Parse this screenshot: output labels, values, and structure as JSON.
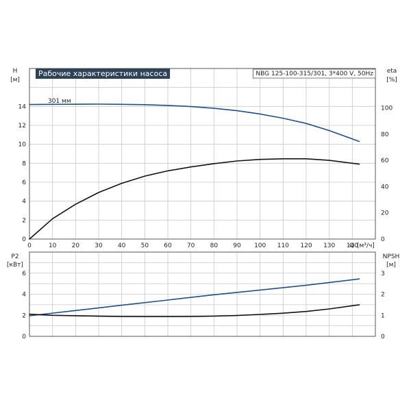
{
  "chart_data": [
    {
      "type": "line",
      "title": "Рабочие характеристики насоса",
      "model": "NBG 125-100-315/301, 3*400 V, 50Hz",
      "xlabel": "Q [м³/ч]",
      "x_label_main": "Q",
      "x_label_unit": "[м³/ч]",
      "xlim": [
        0,
        150
      ],
      "x_ticks": [
        0,
        10,
        20,
        30,
        40,
        50,
        60,
        70,
        80,
        90,
        100,
        110,
        120,
        130,
        140
      ],
      "y_left": {
        "label": "H",
        "unit": "[м]",
        "lim": [
          0,
          18
        ],
        "ticks": [
          0,
          2,
          4,
          6,
          8,
          10,
          12,
          14
        ]
      },
      "y_right": {
        "label": "eta",
        "unit": "[%]",
        "lim": [
          0,
          130
        ],
        "ticks": [
          0,
          20,
          40,
          60,
          80,
          100
        ]
      },
      "grid": true,
      "series": [
        {
          "name": "301 мм",
          "axis": "left",
          "color": "#1c4f8c",
          "x": [
            0,
            10,
            20,
            30,
            40,
            50,
            60,
            70,
            80,
            90,
            100,
            110,
            120,
            130,
            143
          ],
          "y": [
            14.2,
            14.22,
            14.23,
            14.24,
            14.22,
            14.18,
            14.1,
            13.98,
            13.8,
            13.55,
            13.2,
            12.75,
            12.2,
            11.45,
            10.3
          ]
        },
        {
          "name": "",
          "axis": "right",
          "color": "#111111",
          "x": [
            0,
            10,
            20,
            30,
            40,
            50,
            60,
            70,
            80,
            90,
            100,
            110,
            120,
            130,
            143
          ],
          "y": [
            0,
            15.5,
            26.5,
            35.5,
            42.5,
            48,
            52,
            55,
            57.5,
            59.5,
            60.7,
            61.2,
            61.2,
            60,
            57.1
          ]
        }
      ]
    },
    {
      "type": "line",
      "xlim": [
        0,
        150
      ],
      "y_left": {
        "label": "P2",
        "unit": "[кВт]",
        "lim": [
          0,
          8
        ],
        "ticks": [
          0,
          2,
          4,
          6
        ]
      },
      "y_right": {
        "label": "NPSH",
        "unit": "[м]",
        "lim": [
          0,
          4
        ],
        "ticks": [
          0,
          1,
          2,
          3
        ]
      },
      "grid": true,
      "series": [
        {
          "name": "",
          "axis": "left",
          "color": "#1c4f8c",
          "x": [
            0,
            20,
            40,
            60,
            80,
            100,
            120,
            143
          ],
          "y": [
            1.95,
            2.45,
            2.95,
            3.45,
            3.95,
            4.4,
            4.85,
            5.45
          ]
        },
        {
          "name": "",
          "axis": "right",
          "color": "#111111",
          "x": [
            0,
            10,
            20,
            30,
            40,
            50,
            60,
            70,
            80,
            90,
            100,
            110,
            120,
            130,
            143
          ],
          "y": [
            1.05,
            1.0,
            0.98,
            0.955,
            0.94,
            0.935,
            0.935,
            0.94,
            0.96,
            0.99,
            1.04,
            1.1,
            1.18,
            1.3,
            1.5
          ]
        }
      ]
    }
  ]
}
